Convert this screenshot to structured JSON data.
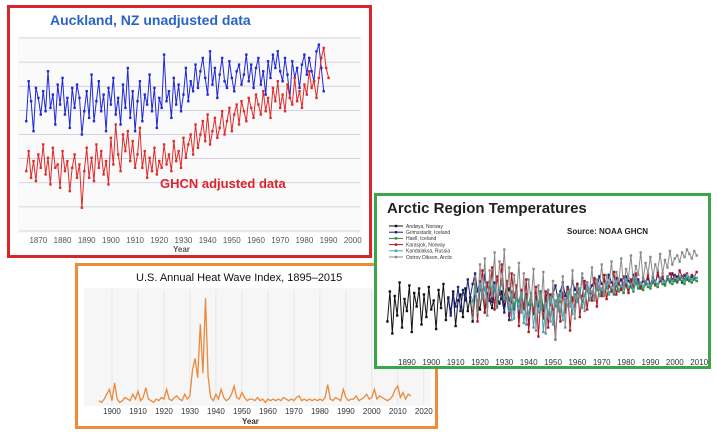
{
  "colors": {
    "blue": "#1f28d6",
    "red": "#e02a2a",
    "orange": "#e98a3c",
    "black": "#111111",
    "navy": "#1a237e",
    "greenline": "#2e8b3c",
    "teal": "#41a8b8",
    "darkred": "#b3141e",
    "pink": "#d28ac8",
    "gray": "#8a8a8a"
  },
  "chart_data": [
    {
      "type": "line",
      "title": "Auckland, NZ unadjusted data",
      "xlabel": "Year",
      "ylabel": "",
      "xlim": [
        1862,
        2003
      ],
      "x_ticks": [
        "1870",
        "1880",
        "1890",
        "1900",
        "1910",
        "1920",
        "1930",
        "1940",
        "1950",
        "1960",
        "1970",
        "1980",
        "1990",
        "2000"
      ],
      "annotation": "GHCN adjusted data",
      "series": [
        {
          "name": "Auckland, NZ unadjusted data",
          "x_start": 1865,
          "values": [
            14.3,
            15.5,
            14.9,
            14.0,
            15.3,
            15.0,
            14.5,
            15.2,
            14.6,
            15.8,
            14.7,
            15.1,
            14.2,
            15.4,
            14.8,
            15.6,
            14.5,
            15.0,
            14.1,
            15.3,
            14.7,
            15.4,
            15.0,
            13.9,
            14.6,
            15.2,
            14.4,
            15.7,
            14.3,
            14.9,
            15.5,
            14.6,
            15.1,
            14.0,
            15.3,
            14.8,
            15.6,
            14.5,
            15.0,
            14.2,
            15.4,
            14.7,
            15.9,
            14.4,
            15.2,
            14.0,
            14.9,
            15.5,
            14.3,
            15.1,
            14.8,
            15.7,
            14.6,
            15.3,
            14.1,
            15.0,
            14.7,
            16.3,
            14.9,
            15.2,
            14.4,
            15.6,
            14.8,
            15.4,
            14.6,
            15.1,
            15.9,
            14.9,
            15.5,
            15.2,
            16.0,
            15.3,
            15.8,
            16.2,
            15.6,
            15.1,
            16.4,
            15.4,
            15.9,
            15.0,
            15.7,
            16.2,
            15.5,
            15.3,
            16.1,
            15.6,
            15.2,
            15.8,
            16.0,
            15.4,
            15.7,
            16.3,
            15.5,
            16.0,
            15.3,
            15.9,
            16.2,
            15.4,
            15.8,
            15.1,
            16.1,
            15.6,
            16.3,
            15.9,
            16.4,
            15.8,
            15.5,
            16.2,
            15.7,
            15.0,
            16.1,
            15.6,
            15.9,
            15.3,
            16.0,
            16.3,
            15.7,
            16.2,
            15.8,
            15.5,
            16.4,
            16.6,
            15.9,
            15.2
          ]
        },
        {
          "name": "GHCN adjusted data",
          "x_start": 1865,
          "values": [
            12.8,
            13.4,
            12.6,
            13.1,
            12.5,
            13.3,
            12.9,
            13.6,
            12.7,
            13.2,
            12.4,
            13.5,
            12.9,
            13.0,
            12.3,
            13.4,
            12.8,
            13.1,
            12.2,
            12.9,
            13.3,
            12.6,
            13.0,
            11.7,
            12.8,
            13.5,
            12.6,
            13.2,
            12.5,
            13.6,
            12.9,
            13.4,
            12.7,
            13.1,
            12.4,
            13.8,
            13.0,
            14.2,
            13.3,
            12.8,
            13.9,
            13.4,
            14.0,
            13.1,
            13.7,
            12.9,
            13.3,
            14.1,
            12.9,
            13.4,
            12.6,
            13.2,
            12.8,
            13.5,
            12.7,
            13.1,
            12.9,
            13.6,
            13.0,
            13.3,
            12.8,
            13.7,
            13.1,
            13.4,
            12.9,
            13.8,
            13.2,
            13.6,
            13.9,
            13.3,
            14.2,
            13.5,
            13.9,
            14.3,
            13.7,
            14.5,
            13.6,
            14.0,
            14.4,
            13.8,
            14.1,
            14.6,
            13.9,
            14.3,
            14.7,
            14.0,
            14.5,
            14.8,
            14.2,
            14.9,
            14.6,
            14.3,
            15.0,
            14.7,
            14.4,
            15.1,
            14.8,
            14.5,
            15.2,
            14.6,
            15.0,
            14.4,
            15.3,
            14.9,
            15.5,
            14.7,
            15.1,
            14.6,
            15.4,
            15.0,
            14.8,
            15.6,
            14.9,
            15.2,
            14.7,
            15.4,
            15.1,
            15.8,
            15.3,
            15.5,
            15.0,
            15.6,
            16.2,
            16.5,
            15.9,
            15.6
          ]
        }
      ]
    },
    {
      "type": "line",
      "title": "U.S. Annual Heat Wave Index, 1895–2015",
      "xlabel": "Year",
      "ylabel": "",
      "xlim": [
        1890,
        2022
      ],
      "x_ticks": [
        "1900",
        "1910",
        "1920",
        "1930",
        "1940",
        "1950",
        "1960",
        "1970",
        "1980",
        "1990",
        "2000",
        "2010",
        "2020"
      ],
      "series": [
        {
          "name": "U.S. Annual Heat Wave Index",
          "x_start": 1895,
          "values": [
            0.2,
            0.1,
            0.3,
            0.6,
            0.9,
            0.2,
            1.3,
            0.3,
            0.1,
            0.2,
            0.4,
            0.3,
            0.2,
            0.6,
            0.3,
            0.8,
            0.2,
            0.4,
            1.0,
            0.3,
            0.2,
            0.1,
            0.3,
            0.2,
            0.4,
            0.3,
            0.9,
            0.3,
            0.2,
            0.4,
            0.5,
            0.3,
            0.2,
            0.6,
            0.3,
            0.5,
            2.1,
            2.8,
            1.6,
            4.9,
            1.9,
            6.5,
            1.7,
            0.4,
            0.2,
            0.6,
            0.3,
            0.9,
            0.4,
            0.2,
            0.3,
            0.6,
            1.1,
            0.4,
            0.3,
            0.7,
            0.4,
            0.2,
            0.3,
            0.3,
            0.2,
            0.4,
            0.2,
            0.3,
            0.1,
            0.3,
            0.2,
            0.3,
            0.2,
            0.3,
            0.2,
            0.4,
            0.3,
            0.2,
            0.3,
            0.2,
            0.4,
            0.5,
            0.2,
            0.3,
            0.2,
            0.3,
            0.2,
            0.3,
            0.2,
            0.3,
            0.2,
            0.4,
            1.2,
            0.3,
            0.2,
            0.4,
            0.3,
            0.2,
            0.9,
            0.4,
            0.2,
            0.3,
            0.3,
            0.5,
            0.2,
            0.3,
            0.4,
            0.6,
            0.3,
            0.4,
            0.9,
            0.3,
            0.5,
            0.4,
            0.3,
            0.2,
            0.3,
            0.5,
            0.9,
            1.1,
            0.4,
            0.7,
            0.3,
            0.6,
            0.5
          ]
        }
      ]
    },
    {
      "type": "line",
      "title": "Arctic Region Temperatures",
      "source": "Source: NOAA GHCN",
      "xlabel": "",
      "ylabel": "",
      "xlim": [
        1881,
        2012
      ],
      "x_ticks": [
        "1890",
        "1900",
        "1910",
        "1920",
        "1930",
        "1940",
        "1950",
        "1960",
        "1970",
        "1980",
        "1990",
        "2000",
        "2010"
      ],
      "series": [
        {
          "name": "Andøya, Norway",
          "color_key": "black",
          "x_start": 1882,
          "values": [
            -1.2,
            0.8,
            -2.0,
            0.5,
            -0.8,
            1.4,
            -1.6,
            0.3,
            -0.5,
            1.2,
            -1.9,
            0.7,
            -0.2,
            1.0,
            -1.4,
            0.6,
            -0.9,
            1.1,
            -0.4,
            0.2,
            -1.7,
            0.9,
            -0.3,
            1.3,
            -1.1,
            0.4,
            -0.6,
            0.8,
            -1.5,
            0.2,
            0.6,
            -0.9,
            1.0,
            -0.5,
            0.4,
            -1.2,
            0.7,
            0.1,
            -0.4,
            0.9,
            -0.6,
            0.5,
            0.2,
            -0.3,
            1.1,
            0.4,
            0.0,
            0.8,
            -0.2,
            0.6,
            1.0,
            0.3
          ]
        },
        {
          "name": "Grimsstadir, Iceland",
          "color_key": "navy",
          "x_start": 1907,
          "values": [
            0.3,
            -0.8,
            0.6,
            -0.2,
            1.1,
            -0.5,
            0.9,
            0.2,
            1.6,
            0.4,
            1.3,
            2.0,
            0.8,
            1.5,
            0.6,
            1.9,
            0.5,
            1.2,
            0.1,
            1.4,
            -0.2,
            0.9,
            0.3,
            -0.6,
            0.7,
            -1.1,
            0.2,
            -0.4,
            0.8,
            -0.9,
            0.5,
            -0.3,
            0.6,
            -1.4,
            0.2,
            -0.7,
            0.4,
            -0.2,
            0.8,
            -0.5,
            0.3,
            0.9,
            -0.1,
            0.6,
            1.2,
            0.2,
            0.8,
            1.4,
            0.5,
            1.1,
            0.7,
            1.5,
            0.9,
            1.3,
            0.6,
            1.7,
            1.0,
            1.4,
            0.8,
            1.2,
            1.6,
            1.0,
            1.8,
            1.3,
            1.5,
            1.1,
            1.9,
            1.4,
            1.2,
            1.7,
            1.3,
            1.6,
            1.0,
            1.8,
            1.5,
            1.2,
            1.9,
            1.4,
            1.6,
            1.1,
            1.5,
            1.3,
            1.7,
            1.2,
            1.8,
            1.4,
            1.9,
            1.5,
            1.6,
            1.3,
            1.8,
            1.5,
            2.0,
            1.6,
            1.8,
            1.7,
            1.4,
            1.9,
            1.6,
            1.5,
            1.8,
            1.7
          ]
        },
        {
          "name": "Haell, Iceland",
          "color_key": "greenline",
          "x_start": 1917,
          "values": [
            0.2,
            0.8,
            -0.3,
            1.2,
            0.5,
            1.0,
            0.1,
            1.4,
            0.6,
            1.1,
            0.3,
            0.9,
            1.3,
            0.4,
            1.0,
            0.2,
            0.8,
            -0.2,
            0.6,
            0.1,
            0.9,
            -0.4,
            0.5,
            -0.1,
            0.7,
            -0.6,
            0.3,
            0.0,
            0.8,
            -0.3,
            0.4,
            -0.8,
            0.2,
            0.6,
            -0.2,
            0.5,
            0.1,
            0.7,
            -0.1,
            0.4,
            0.9,
            0.2,
            0.6,
            0.3,
            0.8,
            0.1,
            0.5,
            0.9,
            0.3,
            0.7,
            0.4,
            1.0,
            0.6,
            0.8,
            0.5,
            1.1,
            0.7,
            0.9,
            0.6,
            1.2,
            0.8,
            1.0,
            0.7,
            1.3,
            0.9,
            1.1,
            0.8,
            1.4,
            1.0,
            1.2,
            0.9,
            1.3,
            1.1,
            1.0,
            1.4,
            1.2,
            1.1,
            1.5,
            1.3,
            1.2,
            1.6,
            1.4,
            1.3,
            1.5,
            1.4,
            1.6,
            1.5,
            1.3,
            1.7,
            1.5,
            1.4,
            1.6,
            1.5
          ]
        },
        {
          "name": "Karasjok, Norway",
          "color_key": "darkred",
          "x_start": 1917,
          "values": [
            -0.5,
            1.6,
            -1.2,
            0.9,
            2.2,
            -0.6,
            1.4,
            0.3,
            2.4,
            -0.4,
            1.8,
            0.6,
            2.6,
            0.2,
            1.5,
            -0.8,
            2.0,
            0.4,
            1.2,
            -1.5,
            0.9,
            -0.3,
            1.6,
            -1.9,
            0.5,
            -0.7,
            1.1,
            -2.2,
            0.3,
            -1.0,
            0.8,
            -1.6,
            0.6,
            -0.4,
            -2.4,
            0.2,
            -1.2,
            0.7,
            -0.6,
            1.0,
            -1.8,
            0.4,
            -0.2,
            1.3,
            -0.9,
            0.5,
            1.5,
            -0.4,
            0.9,
            0.2,
            1.7,
            -0.2,
            1.1,
            0.5,
            1.9,
            0.3,
            1.2,
            0.8,
            2.1,
            0.6,
            1.4,
            0.9,
            1.8,
            1.2,
            0.7,
            1.6,
            1.1,
            2.0,
            1.3,
            1.0,
            1.7,
            1.4,
            1.9,
            1.2,
            1.6,
            1.3,
            2.1,
            1.5,
            1.8,
            1.4,
            1.7,
            2.0,
            1.6,
            1.9,
            1.5,
            2.2,
            1.8,
            1.6,
            2.0,
            1.7,
            1.9,
            1.8,
            2.1
          ]
        },
        {
          "name": "Kandalaksa, Russia",
          "color_key": "teal",
          "x_start": 1917,
          "values": [
            0.1,
            0.9,
            -0.6,
            1.3,
            0.4,
            1.1,
            -0.2,
            1.5,
            0.5,
            1.2,
            0.0,
            1.0,
            1.4,
            0.3,
            0.8,
            -0.5,
            0.6,
            -1.0,
            0.4,
            -0.3,
            0.7,
            -1.3,
            0.2,
            -0.8,
            0.5,
            -1.6,
            0.1,
            -0.6,
            0.6,
            -1.9,
            0.0,
            -0.9,
            0.4,
            -1.4,
            0.2,
            -0.5,
            0.7,
            -1.1,
            0.3,
            -0.2,
            0.9,
            -0.7,
            0.5,
            0.1,
            1.0,
            -0.3,
            0.6,
            1.2,
            0.2,
            0.8,
            0.4,
            1.3,
            0.5,
            1.0,
            0.7,
            1.4,
            0.6,
            1.1,
            0.8,
            1.5,
            0.9,
            1.2,
            1.0,
            1.6,
            1.1,
            1.3,
            0.9,
            1.7,
            1.2,
            1.4,
            1.1,
            1.5,
            1.3,
            1.2,
            1.6,
            1.4,
            1.3,
            1.7,
            1.5,
            1.4,
            1.8,
            1.6,
            1.5,
            1.7,
            1.6,
            1.8,
            1.7,
            1.5,
            1.9,
            1.7,
            1.6,
            1.8,
            1.7
          ]
        },
        {
          "name": "Ostrov Dikson, Arctic",
          "color_key": "gray",
          "x_start": 1917,
          "values": [
            -1.0,
            1.8,
            -0.5,
            2.6,
            0.3,
            3.0,
            -0.8,
            2.2,
            0.6,
            3.4,
            -0.3,
            2.8,
            1.2,
            3.6,
            0.2,
            2.4,
            -1.1,
            1.9,
            0.4,
            2.7,
            -0.6,
            2.0,
            -1.4,
            1.6,
            0.1,
            2.3,
            -1.8,
            1.2,
            -0.4,
            2.1,
            -2.0,
            0.9,
            -1.2,
            1.5,
            -2.4,
            0.6,
            -0.7,
            1.8,
            -1.6,
            0.8,
            -0.2,
            2.2,
            -1.0,
            1.1,
            0.4,
            2.0,
            -0.5,
            1.4,
            0.8,
            2.4,
            0.2,
            1.6,
            1.0,
            2.6,
            0.5,
            1.9,
            1.3,
            2.8,
            0.9,
            2.1,
            1.5,
            3.0,
            1.1,
            2.3,
            1.7,
            3.2,
            1.4,
            2.5,
            1.9,
            3.4,
            1.6,
            2.7,
            2.0,
            3.1,
            1.8,
            2.6,
            2.2,
            3.3,
            2.0,
            2.9,
            2.4,
            3.5,
            2.6,
            3.0,
            3.2,
            2.8,
            3.4,
            3.1,
            3.6,
            3.3,
            3.0,
            3.5,
            3.2
          ]
        }
      ]
    }
  ]
}
